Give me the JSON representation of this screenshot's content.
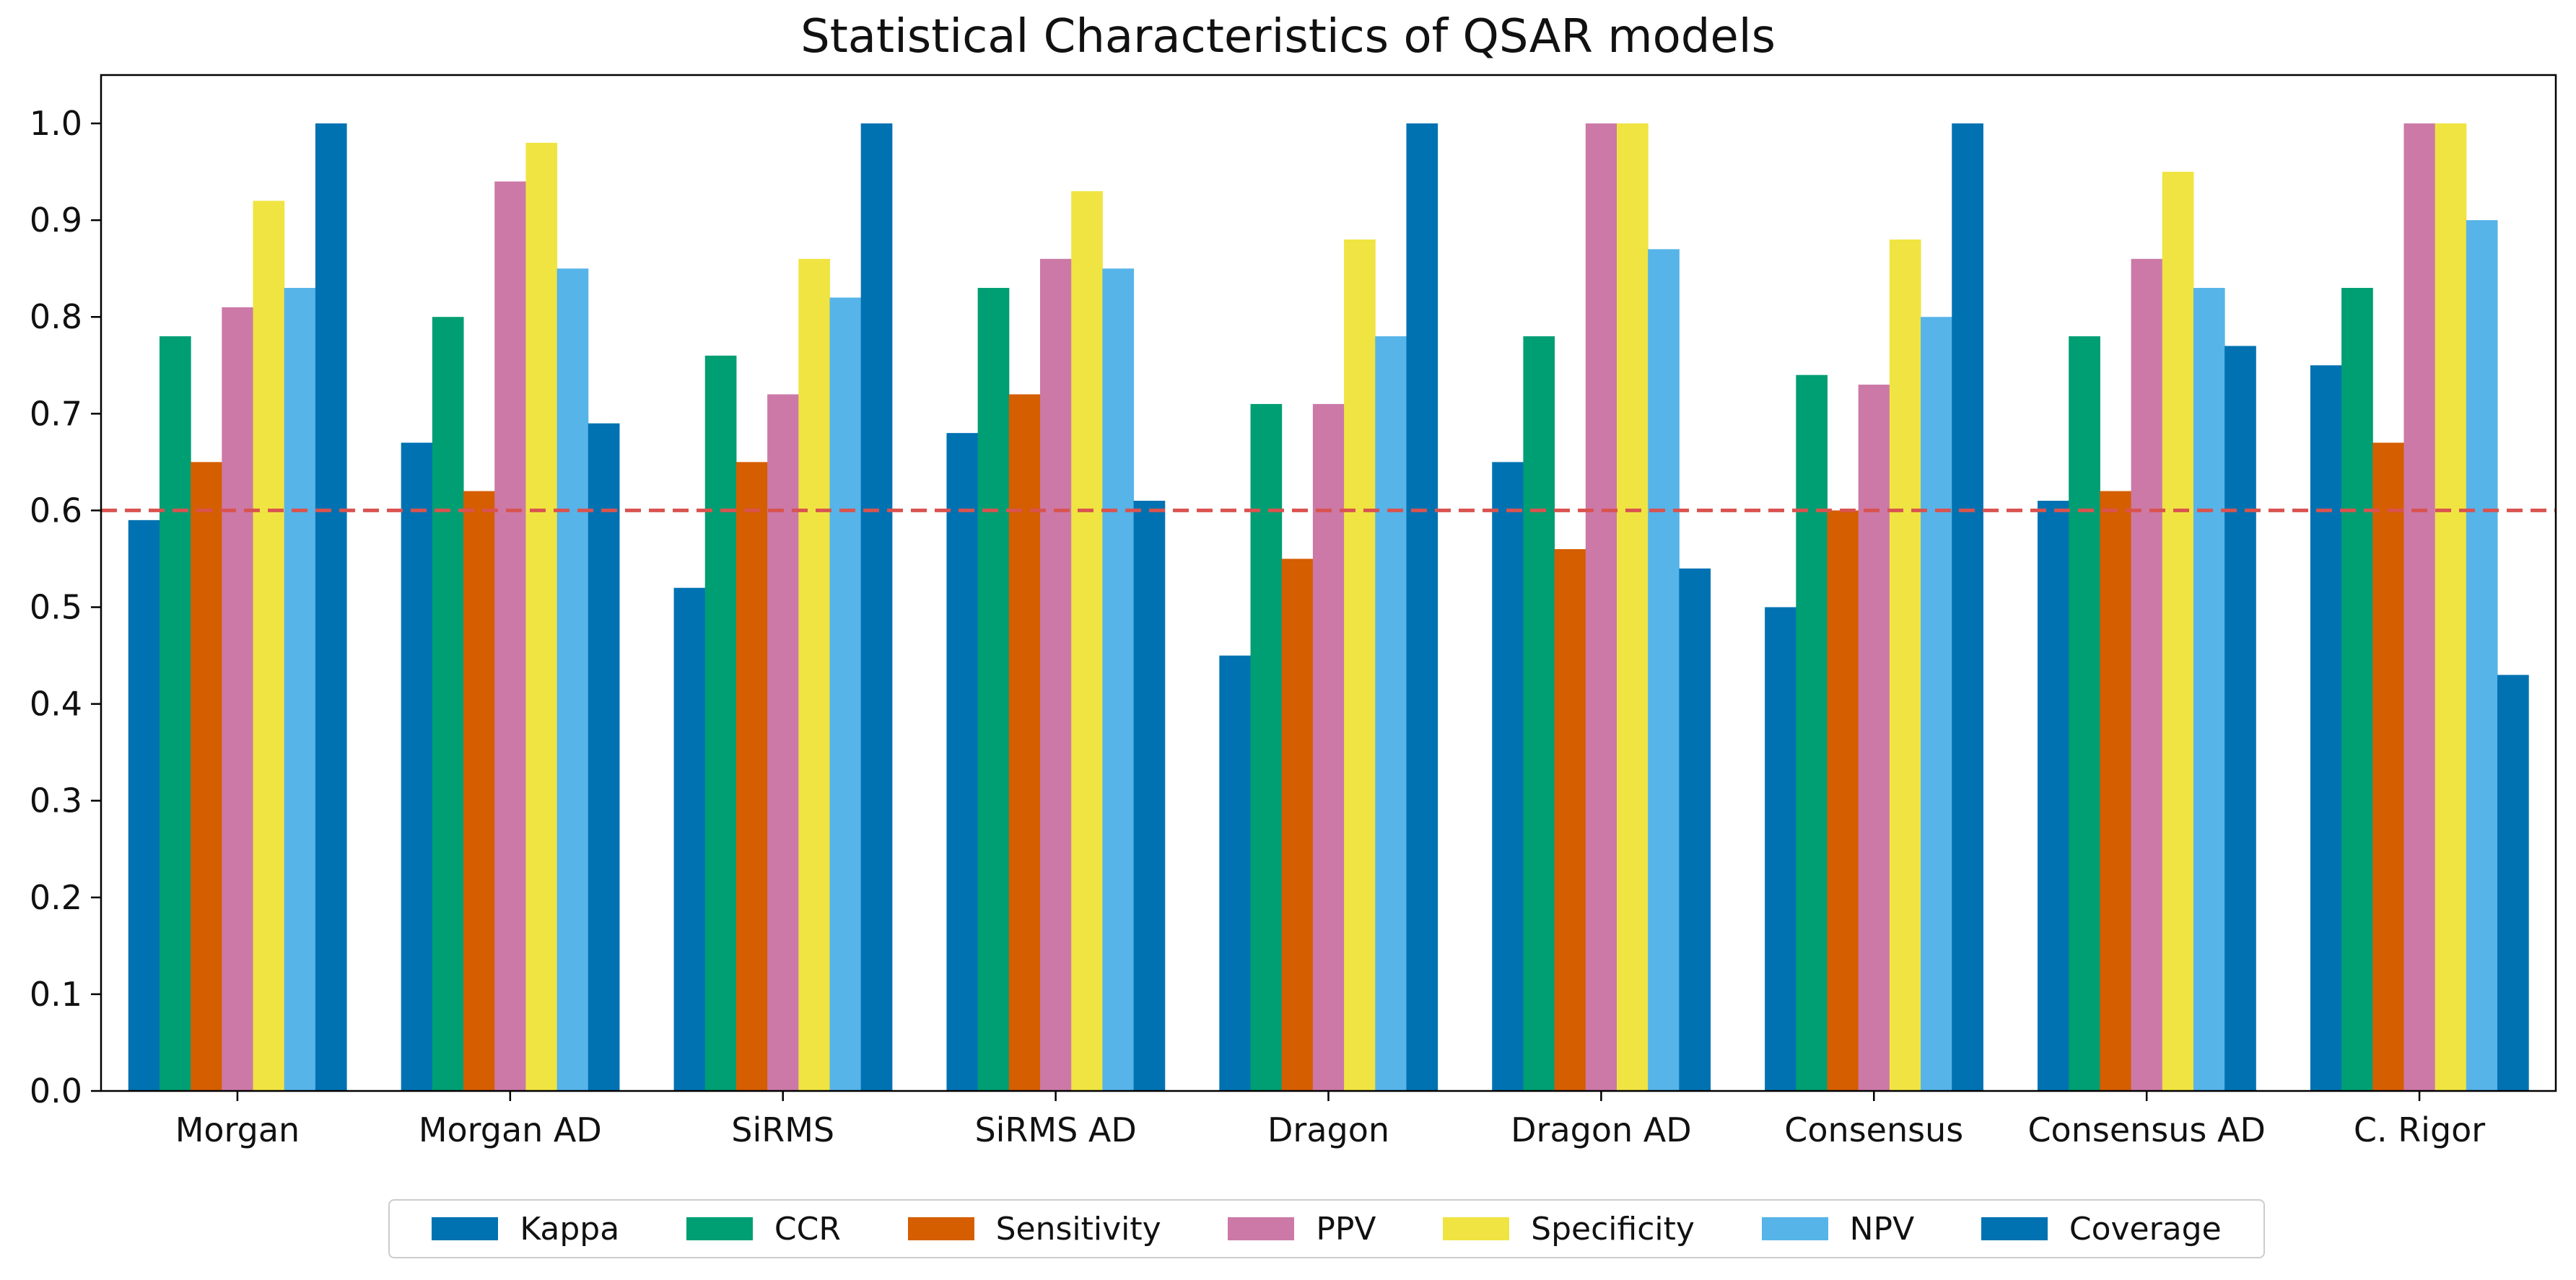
{
  "chart_data": {
    "type": "bar",
    "title": "Statistical Characteristics of QSAR models",
    "categories": [
      "Morgan",
      "Morgan AD",
      "SiRMS",
      "SiRMS AD",
      "Dragon",
      "Dragon AD",
      "Consensus",
      "Consensus AD",
      "C. Rigor"
    ],
    "series": [
      {
        "name": "Kappa",
        "color": "#0072b2",
        "values": [
          0.59,
          0.67,
          0.52,
          0.68,
          0.45,
          0.65,
          0.5,
          0.61,
          0.75
        ]
      },
      {
        "name": "CCR",
        "color": "#009e73",
        "values": [
          0.78,
          0.8,
          0.76,
          0.83,
          0.71,
          0.78,
          0.74,
          0.78,
          0.83
        ]
      },
      {
        "name": "Sensitivity",
        "color": "#d55e00",
        "values": [
          0.65,
          0.62,
          0.65,
          0.72,
          0.55,
          0.56,
          0.6,
          0.62,
          0.67
        ]
      },
      {
        "name": "PPV",
        "color": "#cc79a7",
        "values": [
          0.81,
          0.94,
          0.72,
          0.86,
          0.71,
          1.0,
          0.73,
          0.86,
          1.0
        ]
      },
      {
        "name": "Specificity",
        "color": "#f0e442",
        "values": [
          0.92,
          0.98,
          0.86,
          0.93,
          0.88,
          1.0,
          0.88,
          0.95,
          1.0
        ]
      },
      {
        "name": "NPV",
        "color": "#56b4e9",
        "values": [
          0.83,
          0.85,
          0.82,
          0.85,
          0.78,
          0.87,
          0.8,
          0.83,
          0.9
        ]
      },
      {
        "name": "Coverage",
        "color": "#0072b2",
        "values": [
          1.0,
          0.69,
          1.0,
          0.61,
          1.0,
          0.54,
          1.0,
          0.77,
          0.43
        ]
      }
    ],
    "yticks": [
      "0.0",
      "0.1",
      "0.2",
      "0.3",
      "0.4",
      "0.5",
      "0.6",
      "0.7",
      "0.8",
      "0.9",
      "1.0"
    ],
    "ylim": [
      0,
      1.05
    ],
    "reference_line": {
      "y": 0.6,
      "color": "#d9534f",
      "style": "dashed"
    },
    "legend_position": "bottom-center",
    "grid": false
  }
}
